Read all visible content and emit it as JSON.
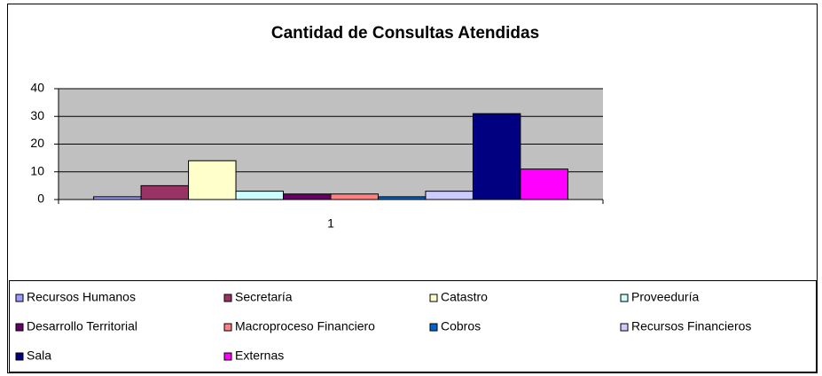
{
  "chart_data": {
    "type": "bar",
    "title": "Cantidad de Consultas Atendidas",
    "categories": [
      "1"
    ],
    "series": [
      {
        "name": "Recursos Humanos",
        "color": "#9999ff",
        "values": [
          1
        ]
      },
      {
        "name": "Secretaría",
        "color": "#993366",
        "values": [
          5
        ]
      },
      {
        "name": "Catastro",
        "color": "#ffffcc",
        "values": [
          14
        ]
      },
      {
        "name": "Proveeduría",
        "color": "#ccffff",
        "values": [
          3
        ]
      },
      {
        "name": "Desarrollo Territorial",
        "color": "#660066",
        "values": [
          2
        ]
      },
      {
        "name": "Macroproceso Financiero",
        "color": "#ff8080",
        "values": [
          2
        ]
      },
      {
        "name": "Cobros",
        "color": "#0066cc",
        "values": [
          1
        ]
      },
      {
        "name": "Recursos Financieros",
        "color": "#ccccff",
        "values": [
          3
        ]
      },
      {
        "name": "Sala",
        "color": "#000080",
        "values": [
          31
        ]
      },
      {
        "name": "Externas",
        "color": "#ff00ff",
        "values": [
          11
        ]
      }
    ],
    "ylim": [
      0,
      40
    ],
    "yticks": [
      0,
      10,
      20,
      30,
      40
    ],
    "grid": true,
    "legend": "bottom"
  }
}
